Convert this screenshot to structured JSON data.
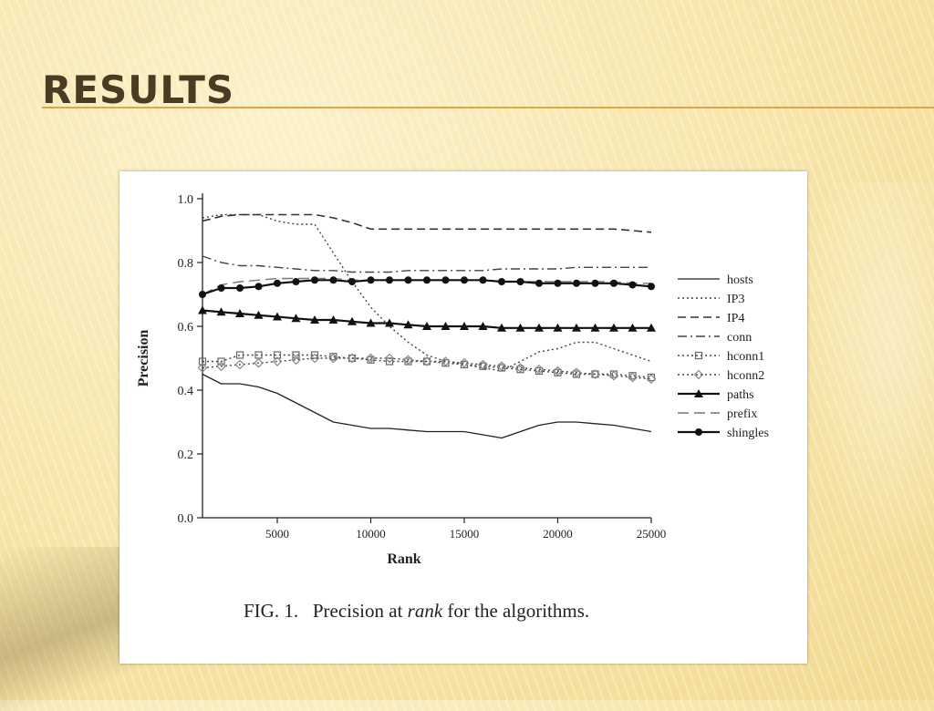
{
  "slide": {
    "title": "RESULTS"
  },
  "caption": {
    "prefix": "FIG. 1.   Precision at ",
    "emphasis": "rank",
    "suffix": " for the algorithms."
  },
  "chart_data": {
    "type": "line",
    "xlabel": "Rank",
    "ylabel": "Precision",
    "xlim": [
      1000,
      25000
    ],
    "ylim": [
      0.0,
      1.0
    ],
    "xticks": [
      5000,
      10000,
      15000,
      20000,
      25000
    ],
    "yticks": [
      0.0,
      0.2,
      0.4,
      0.6,
      0.8,
      1.0
    ],
    "ytick_labels": [
      "0.0",
      "0.2",
      "0.4",
      "0.6",
      "0.8",
      "1.0"
    ],
    "legend_position": "right",
    "grid": false,
    "x": [
      1000,
      2000,
      3000,
      4000,
      5000,
      6000,
      7000,
      8000,
      9000,
      10000,
      11000,
      12000,
      13000,
      14000,
      15000,
      16000,
      17000,
      18000,
      19000,
      20000,
      21000,
      22000,
      23000,
      24000,
      25000
    ],
    "series": [
      {
        "name": "hosts",
        "style": "solid",
        "marker": "none",
        "values": [
          0.45,
          0.42,
          0.42,
          0.41,
          0.39,
          0.36,
          0.33,
          0.3,
          0.29,
          0.28,
          0.28,
          0.275,
          0.27,
          0.27,
          0.27,
          0.26,
          0.25,
          0.27,
          0.29,
          0.3,
          0.3,
          0.295,
          0.29,
          0.28,
          0.27
        ]
      },
      {
        "name": "IP3",
        "style": "dotted",
        "marker": "none",
        "values": [
          0.94,
          0.95,
          0.95,
          0.95,
          0.93,
          0.92,
          0.92,
          0.83,
          0.74,
          0.66,
          0.6,
          0.55,
          0.51,
          0.49,
          0.48,
          0.47,
          0.46,
          0.49,
          0.52,
          0.53,
          0.55,
          0.55,
          0.53,
          0.51,
          0.49
        ]
      },
      {
        "name": "IP4",
        "style": "dashed",
        "marker": "none",
        "values": [
          0.93,
          0.945,
          0.95,
          0.95,
          0.95,
          0.95,
          0.95,
          0.94,
          0.925,
          0.905,
          0.905,
          0.905,
          0.905,
          0.905,
          0.905,
          0.905,
          0.905,
          0.905,
          0.905,
          0.905,
          0.905,
          0.905,
          0.905,
          0.9,
          0.895
        ]
      },
      {
        "name": "conn",
        "style": "dashdot",
        "marker": "none",
        "values": [
          0.82,
          0.8,
          0.79,
          0.79,
          0.785,
          0.78,
          0.775,
          0.775,
          0.77,
          0.77,
          0.77,
          0.775,
          0.775,
          0.775,
          0.775,
          0.775,
          0.78,
          0.78,
          0.78,
          0.78,
          0.785,
          0.785,
          0.785,
          0.785,
          0.785
        ]
      },
      {
        "name": "hconn1",
        "style": "dotted",
        "marker": "square",
        "values": [
          0.49,
          0.49,
          0.51,
          0.51,
          0.51,
          0.51,
          0.51,
          0.505,
          0.5,
          0.495,
          0.49,
          0.49,
          0.49,
          0.485,
          0.48,
          0.475,
          0.47,
          0.465,
          0.46,
          0.455,
          0.45,
          0.45,
          0.45,
          0.445,
          0.44
        ]
      },
      {
        "name": "hconn2",
        "style": "dotted",
        "marker": "diamond",
        "values": [
          0.47,
          0.475,
          0.48,
          0.485,
          0.49,
          0.495,
          0.5,
          0.5,
          0.5,
          0.5,
          0.5,
          0.495,
          0.49,
          0.49,
          0.485,
          0.48,
          0.475,
          0.47,
          0.465,
          0.46,
          0.455,
          0.45,
          0.445,
          0.44,
          0.435
        ]
      },
      {
        "name": "paths",
        "style": "solid-bold",
        "marker": "triangle",
        "values": [
          0.65,
          0.645,
          0.64,
          0.635,
          0.63,
          0.625,
          0.62,
          0.62,
          0.615,
          0.61,
          0.61,
          0.605,
          0.6,
          0.6,
          0.6,
          0.6,
          0.595,
          0.595,
          0.595,
          0.595,
          0.595,
          0.595,
          0.595,
          0.595,
          0.595
        ]
      },
      {
        "name": "prefix",
        "style": "longdash",
        "marker": "none",
        "values": [
          0.7,
          0.73,
          0.74,
          0.745,
          0.75,
          0.75,
          0.75,
          0.75,
          0.745,
          0.745,
          0.745,
          0.745,
          0.745,
          0.745,
          0.745,
          0.745,
          0.74,
          0.74,
          0.74,
          0.74,
          0.74,
          0.74,
          0.74,
          0.735,
          0.735
        ]
      },
      {
        "name": "shingles",
        "style": "solid-bold",
        "marker": "circle",
        "values": [
          0.7,
          0.72,
          0.72,
          0.725,
          0.735,
          0.74,
          0.745,
          0.745,
          0.74,
          0.745,
          0.745,
          0.745,
          0.745,
          0.745,
          0.745,
          0.745,
          0.74,
          0.74,
          0.735,
          0.735,
          0.735,
          0.735,
          0.735,
          0.73,
          0.725
        ]
      }
    ]
  }
}
